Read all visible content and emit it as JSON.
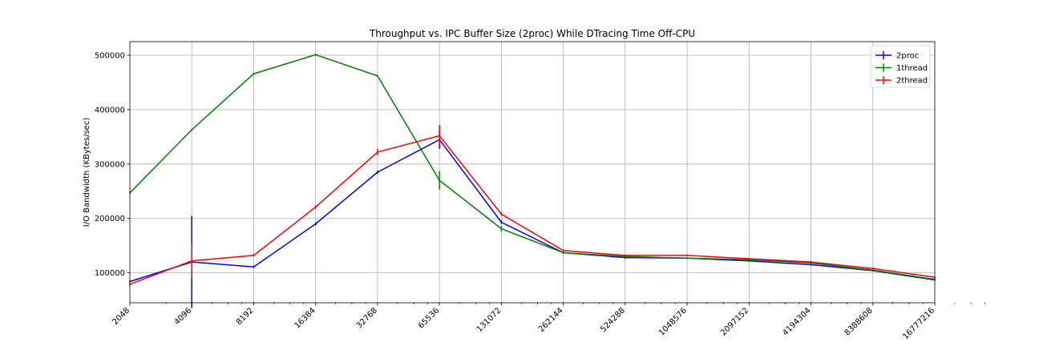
{
  "chart_data": {
    "type": "line",
    "title": "Throughput vs. IPC Buffer Size (2proc) While DTracing Time Off-CPU",
    "xlabel": "",
    "ylabel": "I/O Bandwidth (KBytes/sec)",
    "x_scale": "log2",
    "x": [
      2048,
      4096,
      8192,
      16384,
      32768,
      65536,
      131072,
      262144,
      524288,
      1048576,
      2097152,
      4194304,
      8388608,
      16777216
    ],
    "x_tick_labels": [
      "2048",
      "4096",
      "8192",
      "16384",
      "32768",
      "65536",
      "131072",
      "262144",
      "524288",
      "1048576",
      "2097152",
      "4194304",
      "8388608",
      "16777216"
    ],
    "ylim": [
      45000,
      525000
    ],
    "y_ticks": [
      100000,
      200000,
      300000,
      400000,
      500000
    ],
    "y_tick_labels": [
      "100000",
      "200000",
      "300000",
      "400000",
      "500000"
    ],
    "grid": true,
    "legend_position": "top-right",
    "series": [
      {
        "name": "2proc",
        "color": "#0000ff",
        "values": [
          84000,
          120000,
          111000,
          190000,
          285000,
          345000,
          193000,
          137000,
          128000,
          127000,
          122000,
          115000,
          104000,
          87000
        ],
        "errors": [
          2000,
          85000,
          2000,
          3000,
          3000,
          17000,
          3000,
          2000,
          2000,
          1500,
          1500,
          1500,
          1500,
          1500
        ]
      },
      {
        "name": "1thread",
        "color": "#008000",
        "values": [
          247000,
          363000,
          466000,
          501000,
          462000,
          270000,
          181000,
          137000,
          130000,
          127000,
          124000,
          118000,
          105000,
          88000
        ],
        "errors": [
          2000,
          2000,
          2000,
          2000,
          2000,
          17000,
          5000,
          2000,
          2000,
          1500,
          1500,
          1500,
          1500,
          1500
        ]
      },
      {
        "name": "2thread",
        "color": "#ff0000",
        "values": [
          79000,
          122000,
          132000,
          221000,
          322000,
          352000,
          208000,
          141000,
          132000,
          132000,
          126000,
          120000,
          108000,
          92000
        ],
        "errors": [
          2000,
          31000,
          2000,
          3000,
          6000,
          20000,
          3000,
          2000,
          2000,
          1500,
          1500,
          1500,
          1500,
          1500
        ]
      }
    ]
  }
}
